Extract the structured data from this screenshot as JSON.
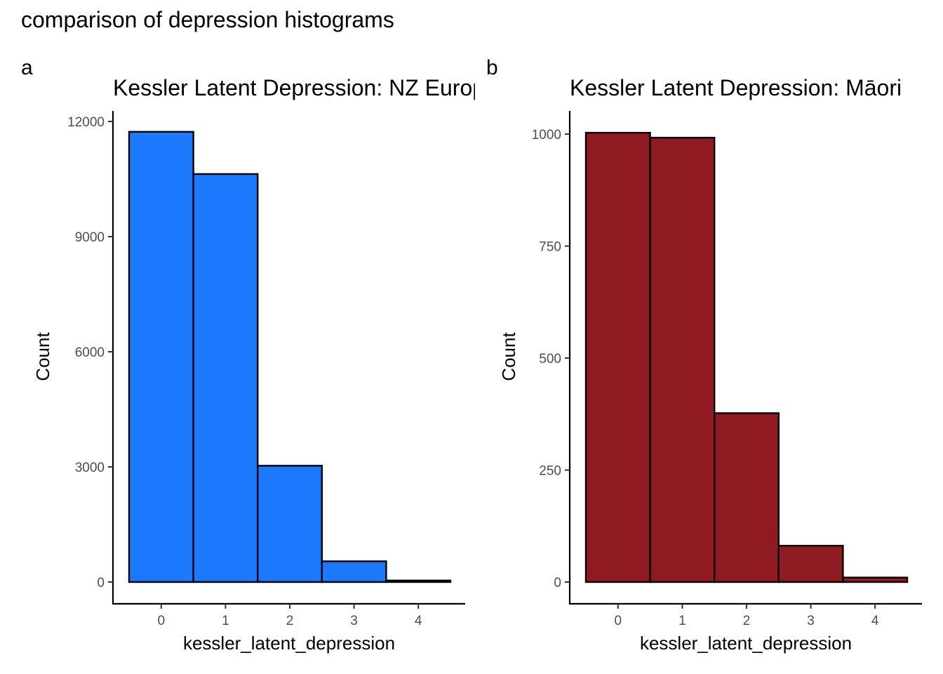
{
  "title": "comparison of depression histograms",
  "chart_data": [
    {
      "type": "bar",
      "tag": "a",
      "title": "Kessler Latent Depression: NZ European",
      "xlabel": "kessler_latent_depression",
      "ylabel": "Count",
      "categories": [
        0,
        1,
        2,
        3,
        4
      ],
      "values": [
        11730,
        10630,
        3030,
        540,
        40
      ],
      "xticks": [
        "0",
        "1",
        "2",
        "3",
        "4"
      ],
      "yticks": [
        0,
        3000,
        6000,
        9000,
        12000
      ],
      "ylim": [
        0,
        12000
      ],
      "xlim": [
        -0.5,
        4.5
      ],
      "fill_color": "#1c79fd",
      "grid": false
    },
    {
      "type": "bar",
      "tag": "b",
      "title": "Kessler Latent Depression: Māori",
      "xlabel": "kessler_latent_depression",
      "ylabel": "Count",
      "categories": [
        0,
        1,
        2,
        3,
        4
      ],
      "values": [
        1003,
        992,
        377,
        81,
        10
      ],
      "xticks": [
        "0",
        "1",
        "2",
        "3",
        "4"
      ],
      "yticks": [
        0,
        250,
        500,
        750,
        1000
      ],
      "ylim": [
        0,
        1000
      ],
      "xlim": [
        -0.5,
        4.5
      ],
      "fill_color": "#901a22",
      "grid": false
    }
  ]
}
